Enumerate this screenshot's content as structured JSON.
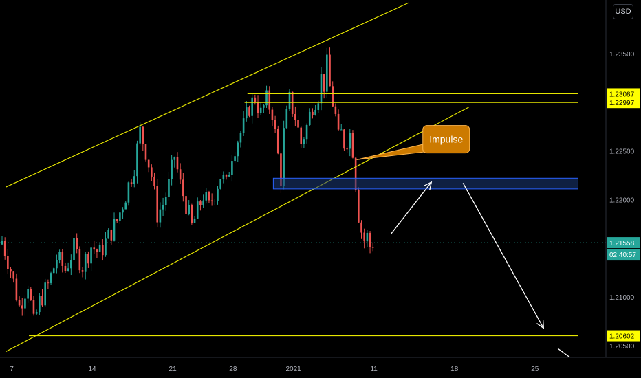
{
  "chart_data": {
    "type": "candlestick",
    "currency_button": "USD",
    "colors": {
      "background": "#000000",
      "up": "#26a69a",
      "down": "#ef5350",
      "annotation_line": "#e5e500",
      "zone_border": "#2962ff",
      "zone_fill": "#1c3a78",
      "arrow": "#ffffff",
      "callout_fill": "#cc7a00",
      "callout_border": "#ffb74d",
      "current_price_tag": "#26a69a",
      "level_tag": "#ffff00"
    },
    "y_axis": {
      "ylim": [
        1.2038,
        1.2405
      ],
      "ticks": [
        {
          "value": 1.235,
          "label": "1.23500"
        },
        {
          "value": 1.225,
          "label": "1.22500"
        },
        {
          "value": 1.22,
          "label": "1.22000"
        },
        {
          "value": 1.21,
          "label": "1.21000"
        },
        {
          "value": 1.205,
          "label": "1.20500"
        }
      ]
    },
    "x_axis": {
      "ticks": [
        {
          "x": 0,
          "label": "7"
        },
        {
          "x": 28,
          "label": "14"
        },
        {
          "x": 56,
          "label": "21"
        },
        {
          "x": 77,
          "label": "28"
        },
        {
          "x": 98,
          "label": "2021"
        },
        {
          "x": 126,
          "label": "11"
        },
        {
          "x": 154,
          "label": "18"
        },
        {
          "x": 182,
          "label": "25"
        }
      ]
    },
    "price_tags": [
      {
        "value": 1.23087,
        "label": "1.23087",
        "kind": "level"
      },
      {
        "value": 1.22997,
        "label": "1.22997",
        "kind": "level"
      },
      {
        "value": 1.21558,
        "label": "1.21558",
        "kind": "current"
      },
      {
        "value": 1.20602,
        "label": "1.20602",
        "kind": "level"
      }
    ],
    "countdown": "02:40:57",
    "current_price": 1.21558,
    "ohlc_anchors": [
      [
        0,
        1.2158
      ],
      [
        3,
        1.2128
      ],
      [
        6,
        1.209
      ],
      [
        9,
        1.2115
      ],
      [
        11,
        1.2072
      ],
      [
        13,
        1.2095
      ],
      [
        16,
        1.2112
      ],
      [
        19,
        1.214
      ],
      [
        22,
        1.2128
      ],
      [
        25,
        1.215
      ],
      [
        28,
        1.2132
      ],
      [
        31,
        1.2152
      ],
      [
        34,
        1.2145
      ],
      [
        37,
        1.2162
      ],
      [
        40,
        1.2178
      ],
      [
        43,
        1.2205
      ],
      [
        46,
        1.2235
      ],
      [
        48,
        1.227
      ],
      [
        50,
        1.225
      ],
      [
        52,
        1.2225
      ],
      [
        54,
        1.2185
      ],
      [
        56,
        1.2195
      ],
      [
        58,
        1.2215
      ],
      [
        60,
        1.2245
      ],
      [
        62,
        1.2215
      ],
      [
        64,
        1.2195
      ],
      [
        66,
        1.2172
      ],
      [
        68,
        1.2188
      ],
      [
        70,
        1.2205
      ],
      [
        72,
        1.2192
      ],
      [
        74,
        1.2208
      ],
      [
        76,
        1.2225
      ],
      [
        78,
        1.2215
      ],
      [
        80,
        1.2248
      ],
      [
        82,
        1.2262
      ],
      [
        84,
        1.2275
      ],
      [
        86,
        1.2295
      ],
      [
        88,
        1.2305
      ],
      [
        90,
        1.2288
      ],
      [
        92,
        1.2302
      ],
      [
        94,
        1.229
      ],
      [
        96,
        1.2245
      ],
      [
        97,
        1.2222
      ],
      [
        98,
        1.2268
      ],
      [
        100,
        1.2302
      ],
      [
        102,
        1.2285
      ],
      [
        104,
        1.2258
      ],
      [
        106,
        1.2275
      ],
      [
        108,
        1.2298
      ],
      [
        110,
        1.2308
      ],
      [
        111,
        1.2325
      ],
      [
        112,
        1.2318
      ],
      [
        113,
        1.2338
      ],
      [
        114,
        1.2315
      ],
      [
        115,
        1.23
      ],
      [
        116,
        1.2285
      ],
      [
        117,
        1.2262
      ],
      [
        118,
        1.2268
      ],
      [
        119,
        1.2258
      ],
      [
        120,
        1.2262
      ],
      [
        121,
        1.2268
      ],
      [
        122,
        1.2252
      ],
      [
        123,
        1.2218
      ],
      [
        124,
        1.2185
      ],
      [
        125,
        1.2168
      ],
      [
        126,
        1.2158
      ],
      [
        127,
        1.2162
      ],
      [
        128,
        1.2152
      ],
      [
        129,
        1.2156
      ]
    ],
    "annotations": {
      "channel_upper": {
        "x1": -2,
        "y1": 1.2213,
        "x2": 138,
        "y2": 1.2402
      },
      "channel_lower": {
        "x1": -2,
        "y1": 1.2044,
        "x2": 159,
        "y2": 1.2295
      },
      "support_line": {
        "x1": 6,
        "x2": 197,
        "value": 1.20602
      },
      "resistance_1": {
        "x1": 82,
        "x2": 197,
        "value": 1.23087
      },
      "resistance_2": {
        "x1": 81,
        "x2": 197,
        "value": 1.22997
      },
      "zone": {
        "x1": 91,
        "x2": 197,
        "top": 1.2222,
        "bottom": 1.2211
      },
      "callout": {
        "text": "Impulse",
        "anchor_x": 120,
        "anchor_y": 1.2241,
        "box_x": 143,
        "box_y": 1.2262
      },
      "arrow_up": {
        "x1": 132,
        "y1": 1.2165,
        "x2": 146,
        "y2": 1.2218
      },
      "arrow_down": {
        "x1": 157,
        "y1": 1.2217,
        "x2": 185,
        "y2": 1.2068
      },
      "corner_line": {
        "x1": 190,
        "y1": 1.2047,
        "x2": 197,
        "y2": 1.2032
      }
    }
  }
}
